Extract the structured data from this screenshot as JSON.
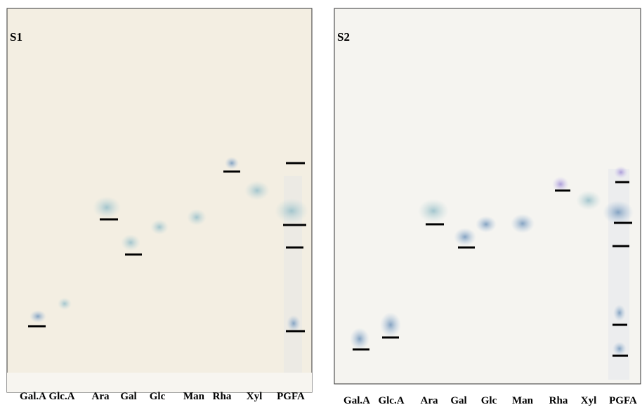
{
  "panels": [
    {
      "label": "S1",
      "lanes": [
        "Gal.A",
        "Glc.A",
        "Ara",
        "Gal",
        "Glc",
        "Man",
        "Rha",
        "Xyl",
        "PGFA"
      ]
    },
    {
      "label": "S2",
      "lanes": [
        "Gal.A",
        "Glc.A",
        "Ara",
        "Gal",
        "Glc",
        "Man",
        "Rha",
        "Xyl",
        "PGFA"
      ]
    }
  ]
}
